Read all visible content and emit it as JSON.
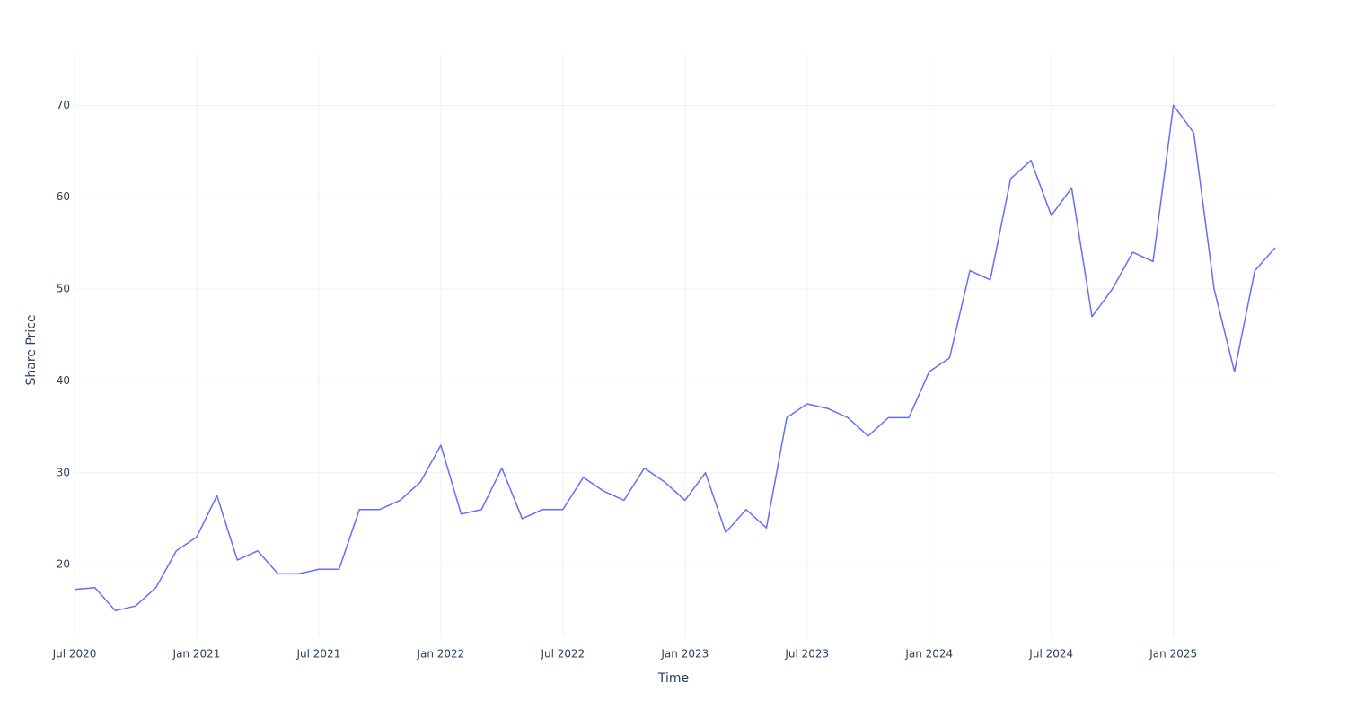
{
  "chart_data": {
    "type": "line",
    "x_label": "Time",
    "y_label": "Share Price",
    "x": [
      "2020-07",
      "2020-08",
      "2020-09",
      "2020-10",
      "2020-11",
      "2020-12",
      "2021-01",
      "2021-02",
      "2021-03",
      "2021-04",
      "2021-05",
      "2021-06",
      "2021-07",
      "2021-08",
      "2021-09",
      "2021-10",
      "2021-11",
      "2021-12",
      "2022-01",
      "2022-02",
      "2022-03",
      "2022-04",
      "2022-05",
      "2022-06",
      "2022-07",
      "2022-08",
      "2022-09",
      "2022-10",
      "2022-11",
      "2022-12",
      "2023-01",
      "2023-02",
      "2023-03",
      "2023-04",
      "2023-05",
      "2023-06",
      "2023-07",
      "2023-08",
      "2023-09",
      "2023-10",
      "2023-11",
      "2023-12",
      "2024-01",
      "2024-02",
      "2024-03",
      "2024-04",
      "2024-05",
      "2024-06",
      "2024-07",
      "2024-08",
      "2024-09",
      "2024-10",
      "2024-11",
      "2024-12",
      "2025-01",
      "2025-02",
      "2025-03",
      "2025-04",
      "2025-05",
      "2025-06"
    ],
    "series": [
      {
        "name": "Share Price",
        "color": "#636efa",
        "values": [
          17.3,
          17.5,
          15,
          15.5,
          17.5,
          21.5,
          23,
          27.5,
          20.5,
          21.5,
          19,
          19,
          19.5,
          19.5,
          26,
          26,
          27,
          29,
          33,
          25.5,
          26,
          30.5,
          25,
          26,
          26,
          29.5,
          28,
          27,
          30.5,
          29,
          27,
          30,
          23.5,
          26,
          24,
          36,
          37.5,
          37,
          36,
          34,
          36,
          36,
          41,
          42.5,
          52,
          51,
          62,
          64,
          58,
          61,
          47,
          50,
          54,
          53,
          70,
          67,
          50,
          41,
          52,
          54.5
        ]
      }
    ],
    "xlim": [
      "2020-07",
      "2025-06"
    ],
    "xticks": [
      {
        "value": "2020-07",
        "label": "Jul 2020"
      },
      {
        "value": "2021-01",
        "label": "Jan 2021"
      },
      {
        "value": "2021-07",
        "label": "Jul 2021"
      },
      {
        "value": "2022-01",
        "label": "Jan 2022"
      },
      {
        "value": "2022-07",
        "label": "Jul 2022"
      },
      {
        "value": "2023-01",
        "label": "Jan 2023"
      },
      {
        "value": "2023-07",
        "label": "Jul 2023"
      },
      {
        "value": "2024-01",
        "label": "Jan 2024"
      },
      {
        "value": "2024-07",
        "label": "Jul 2024"
      },
      {
        "value": "2025-01",
        "label": "Jan 2025"
      }
    ],
    "ylim": [
      12.1,
      75.6
    ],
    "yticks": [
      20,
      30,
      40,
      50,
      60,
      70
    ],
    "grid": true
  }
}
